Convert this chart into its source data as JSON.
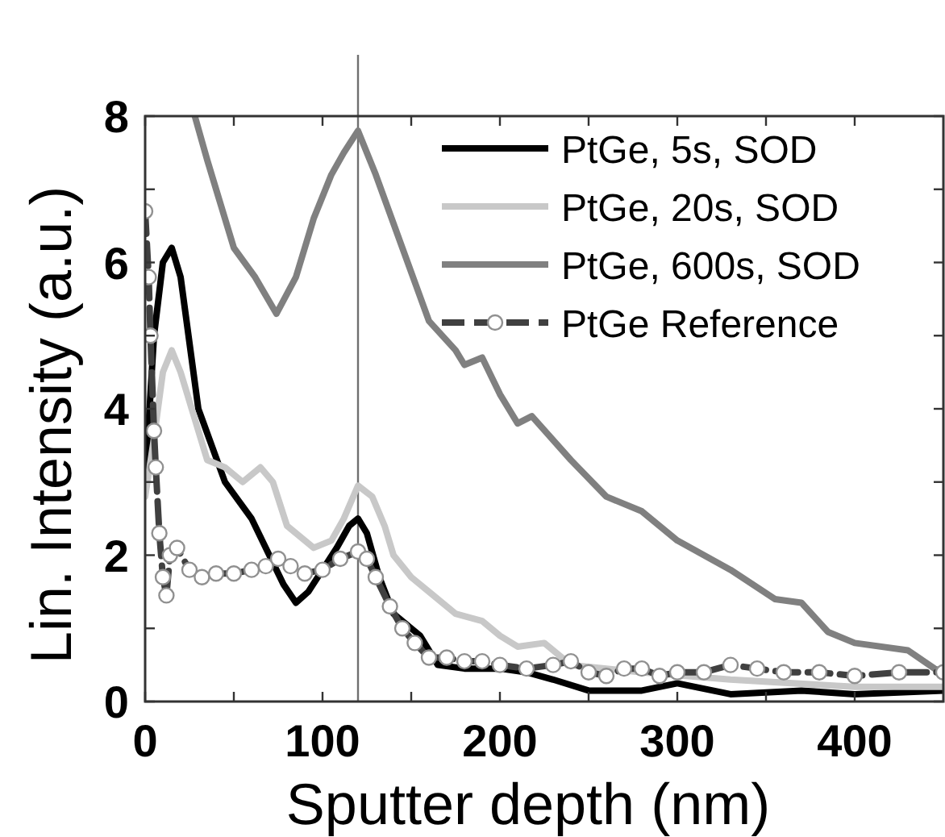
{
  "chart_data": {
    "type": "line",
    "xlabel": "Sputter depth (nm)",
    "ylabel": "Lin. Intensity (a.u.)",
    "xlim": [
      0,
      450
    ],
    "ylim": [
      0,
      8
    ],
    "xticks": [
      0,
      {
        "value": 50,
        "label": null
      },
      100,
      {
        "value": 150,
        "label": null
      },
      200,
      {
        "value": 250,
        "label": null
      },
      300,
      {
        "value": 350,
        "label": null
      },
      400
    ],
    "yticks": [
      0,
      {
        "value": 1,
        "label": null
      },
      2,
      {
        "value": 3,
        "label": null
      },
      4,
      {
        "value": 5,
        "label": null
      },
      6,
      {
        "value": 7,
        "label": null
      },
      8
    ],
    "grid": false,
    "legend": "top right",
    "line_style": "solid",
    "marker": "none",
    "ref_lines": [
      {
        "axis": "x",
        "value": 120,
        "color": "#707070"
      }
    ],
    "series": [
      {
        "name": "PtGe, 5s, SOD",
        "color": "#000000",
        "x": [
          0,
          5,
          10,
          15,
          20,
          30,
          45,
          60,
          70,
          78,
          85,
          92,
          100,
          108,
          115,
          120,
          125,
          132,
          140,
          155,
          165,
          180,
          200,
          215,
          230,
          250,
          280,
          300,
          330,
          370,
          400,
          450
        ],
        "values": [
          3,
          5,
          6.0,
          6.2,
          5.8,
          4.0,
          3.0,
          2.5,
          2.0,
          1.6,
          1.35,
          1.5,
          1.8,
          2.1,
          2.4,
          2.5,
          2.3,
          1.7,
          1.2,
          0.9,
          0.5,
          0.45,
          0.45,
          0.4,
          0.3,
          0.15,
          0.15,
          0.25,
          0.1,
          0.15,
          0.1,
          0.15
        ]
      },
      {
        "name": "PtGe, 20s, SOD",
        "color": "#c8c8c8",
        "x": [
          0,
          5,
          10,
          15,
          20,
          35,
          45,
          55,
          65,
          72,
          80,
          95,
          105,
          112,
          120,
          128,
          135,
          140,
          150,
          160,
          175,
          190,
          200,
          210,
          225,
          240,
          260,
          280,
          330,
          400,
          450
        ],
        "values": [
          2.8,
          3.6,
          4.5,
          4.8,
          4.5,
          3.3,
          3.2,
          3.0,
          3.2,
          3.0,
          2.4,
          2.1,
          2.2,
          2.5,
          2.95,
          2.8,
          2.4,
          2.0,
          1.7,
          1.5,
          1.2,
          1.1,
          0.9,
          0.75,
          0.8,
          0.5,
          0.45,
          0.4,
          0.3,
          0.2,
          0.2
        ]
      },
      {
        "name": "PtGe, 600s, SOD",
        "color": "#808080",
        "x": [
          28,
          35,
          40,
          50,
          62,
          74,
          85,
          95,
          105,
          112,
          120,
          130,
          145,
          160,
          175,
          180,
          190,
          200,
          210,
          218,
          240,
          260,
          280,
          300,
          330,
          355,
          370,
          385,
          400,
          430,
          445,
          450
        ],
        "values": [
          8,
          7.4,
          7.0,
          6.2,
          5.8,
          5.3,
          5.8,
          6.6,
          7.2,
          7.5,
          7.8,
          7.2,
          6.2,
          5.2,
          4.8,
          4.6,
          4.7,
          4.2,
          3.8,
          3.9,
          3.3,
          2.8,
          2.6,
          2.2,
          1.8,
          1.4,
          1.35,
          0.95,
          0.8,
          0.7,
          0.45,
          0.4
        ]
      },
      {
        "name": "PtGe Reference",
        "color": "#404040",
        "line_style": "dashed",
        "marker": "circle",
        "x": [
          0,
          2,
          3,
          5,
          6,
          8,
          10,
          12,
          14,
          18,
          25,
          32,
          40,
          50,
          60,
          68,
          75,
          82,
          90,
          100,
          110,
          120,
          125,
          130,
          138,
          145,
          152,
          160,
          170,
          180,
          190,
          200,
          215,
          230,
          240,
          250,
          260,
          270,
          280,
          290,
          300,
          315,
          330,
          345,
          360,
          380,
          400,
          425,
          450
        ],
        "values": [
          6.7,
          5.8,
          5.0,
          3.7,
          3.2,
          2.3,
          1.7,
          1.45,
          2.0,
          2.1,
          1.8,
          1.7,
          1.75,
          1.75,
          1.8,
          1.85,
          1.95,
          1.85,
          1.75,
          1.8,
          1.95,
          2.05,
          1.95,
          1.7,
          1.3,
          1.0,
          0.8,
          0.6,
          0.6,
          0.55,
          0.55,
          0.5,
          0.45,
          0.5,
          0.55,
          0.4,
          0.35,
          0.45,
          0.45,
          0.35,
          0.4,
          0.4,
          0.5,
          0.45,
          0.4,
          0.4,
          0.35,
          0.4,
          0.4
        ]
      }
    ]
  }
}
